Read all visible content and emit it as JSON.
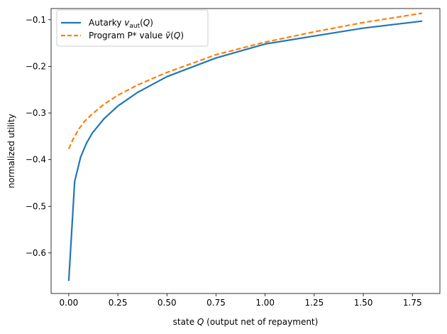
{
  "chart_data": {
    "type": "line",
    "title": "",
    "xlabel": "state Q (output net of repayment)",
    "ylabel": "normalized utility",
    "xlim": [
      -0.09,
      1.89
    ],
    "ylim": [
      -0.687,
      -0.076
    ],
    "xticks": [
      0.0,
      0.25,
      0.5,
      0.75,
      1.0,
      1.25,
      1.5,
      1.75
    ],
    "xtick_labels": [
      "0.00",
      "0.25",
      "0.50",
      "0.75",
      "1.00",
      "1.25",
      "1.50",
      "1.75"
    ],
    "yticks": [
      -0.6,
      -0.5,
      -0.4,
      -0.3,
      -0.2,
      -0.1
    ],
    "ytick_labels": [
      "−0.6",
      "−0.5",
      "−0.4",
      "−0.3",
      "−0.2",
      "−0.1"
    ],
    "grid": false,
    "legend_position": "top-left",
    "series": [
      {
        "name": "Autarky  v_aut(Q)",
        "color": "#1f77b4",
        "style": "solid",
        "x": [
          0.0,
          0.03,
          0.06,
          0.09,
          0.12,
          0.18,
          0.25,
          0.35,
          0.5,
          0.75,
          1.0,
          1.25,
          1.5,
          1.8
        ],
        "y": [
          -0.66,
          -0.447,
          -0.395,
          -0.365,
          -0.343,
          -0.312,
          -0.285,
          -0.256,
          -0.222,
          -0.182,
          -0.152,
          -0.135,
          -0.118,
          -0.103
        ]
      },
      {
        "name": "Program P* value  ṽ(Q)",
        "color": "#ff7f0e",
        "style": "dashed",
        "x": [
          0.0,
          0.02,
          0.05,
          0.08,
          0.12,
          0.18,
          0.25,
          0.35,
          0.5,
          0.75,
          1.0,
          1.25,
          1.5,
          1.8
        ],
        "y": [
          -0.377,
          -0.358,
          -0.335,
          -0.318,
          -0.302,
          -0.281,
          -0.262,
          -0.24,
          -0.213,
          -0.175,
          -0.148,
          -0.126,
          -0.106,
          -0.086
        ]
      }
    ]
  }
}
